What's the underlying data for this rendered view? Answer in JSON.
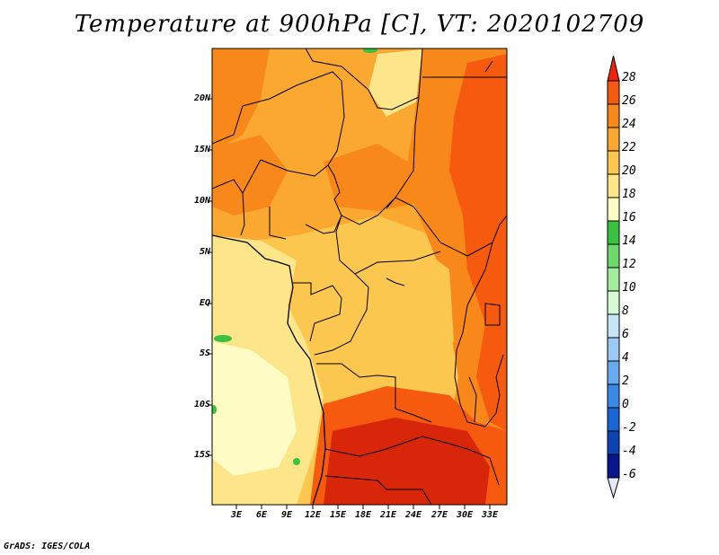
{
  "title": "Temperature at 900hPa [C], VT: 2020102709",
  "footer": "GrADS: IGES/COLA",
  "y_axis_labels": [
    "20N",
    "15N",
    "10N",
    "5N",
    "EQ",
    "5S",
    "10S",
    "15S"
  ],
  "x_axis_labels": [
    "3E",
    "6E",
    "9E",
    "12E",
    "15E",
    "18E",
    "21E",
    "24E",
    "27E",
    "30E",
    "33E"
  ],
  "colorbar": {
    "labels": [
      "28",
      "26",
      "24",
      "22",
      "20",
      "18",
      "16",
      "14",
      "12",
      "10",
      "8",
      "6",
      "4",
      "2",
      "0",
      "-2",
      "-4",
      "-6"
    ],
    "colors": [
      "#f0240a",
      "#f55a0f",
      "#f8881a",
      "#fba830",
      "#fcc74f",
      "#fde58a",
      "#fefcc4",
      "#39c23f",
      "#6cd96a",
      "#a2ee9d",
      "#d6fbd3",
      "#c6e5f9",
      "#9cc9f4",
      "#6aaaf0",
      "#3b89e6",
      "#1a66d6",
      "#0c44b8",
      "#051690",
      "#e8e8fb"
    ]
  },
  "regions": {
    "cool_southwest": "#fde58a",
    "warm_central": "#fba830",
    "hot_north": "#f8881a",
    "hot_east": "#f55a0f",
    "hottest_south": "#d8260a"
  }
}
